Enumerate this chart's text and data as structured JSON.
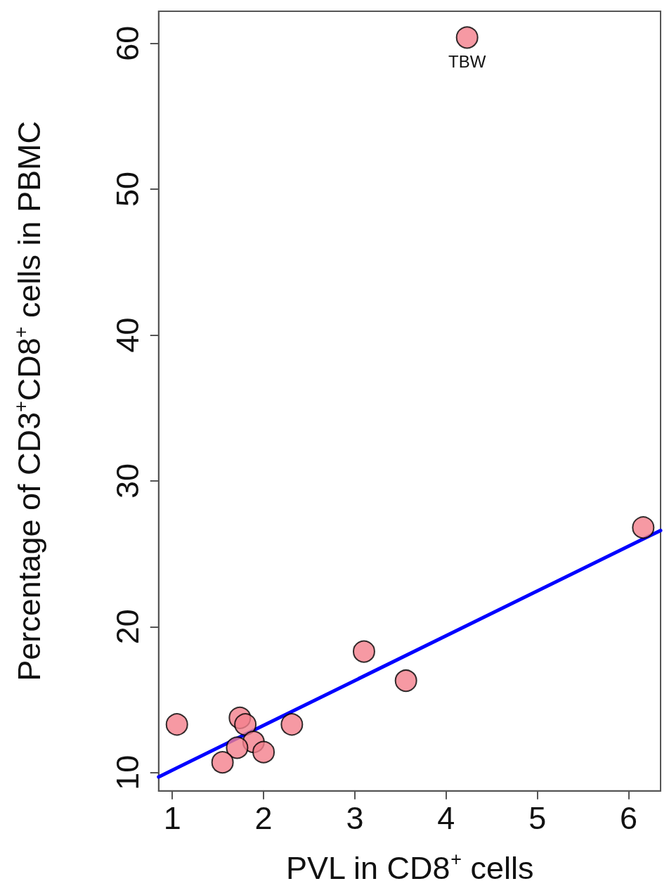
{
  "chart_data": {
    "type": "scatter",
    "xlabel": "PVL in CD8$^{+}$ cells",
    "ylabel": "Percentage of CD3$^{+}$CD8$^{+}$ cells in PBMC",
    "xlim": [
      0.85,
      6.35
    ],
    "ylim": [
      8.75,
      62.2
    ],
    "xticks": [
      1,
      2,
      3,
      4,
      5,
      6
    ],
    "yticks": [
      10,
      20,
      30,
      40,
      50,
      60
    ],
    "grid": false,
    "marker": "circle",
    "series": [
      {
        "color": "#f4808c",
        "x": [
          4.23,
          6.16,
          3.1,
          3.56,
          1.05,
          1.74,
          1.8,
          2.31,
          1.89,
          1.71,
          2.0,
          1.55
        ],
        "values": [
          60.4,
          26.8,
          18.3,
          16.3,
          13.3,
          13.75,
          13.3,
          13.3,
          12.1,
          11.7,
          11.4,
          10.7
        ]
      },
      {
        "type": "line",
        "color": "#0000ff",
        "line_style": "solid",
        "marker": "none",
        "x": [
          0.85,
          6.35
        ],
        "values": [
          9.7,
          26.6
        ]
      }
    ],
    "annotations": [
      {
        "text": "TBW",
        "x": 4.23,
        "y": 60.4
      }
    ]
  }
}
